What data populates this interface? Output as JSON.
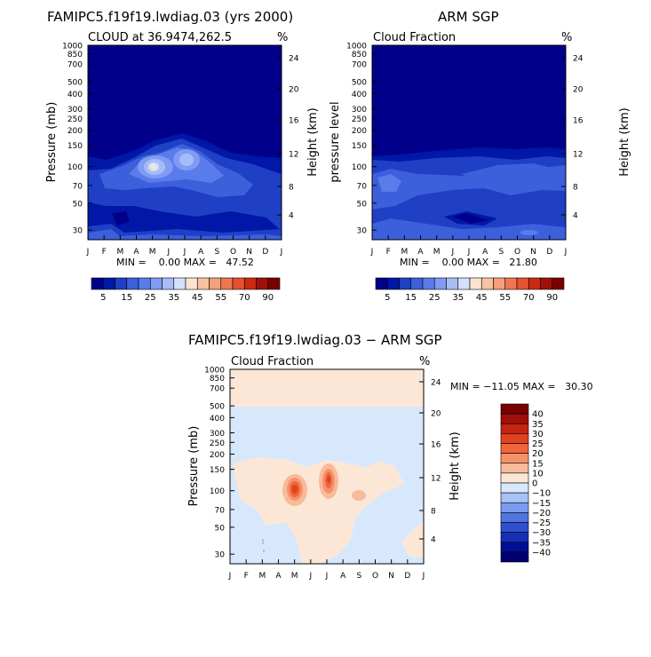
{
  "chart_data": [
    {
      "type": "heatmap",
      "id": "model",
      "title": "FAMIPC5.f19f19.lwdiag.03 (yrs 2000)",
      "subtitle_left": "CLOUD at 36.9474,262.5",
      "subtitle_right": "%",
      "ylabel": "Pressure (mb)",
      "ylabel_right": "Height (km)",
      "min_max_text": "MIN =    0.00 MAX =   47.52",
      "ytick_labels": [
        "30",
        "50",
        "70",
        "100",
        "150",
        "200",
        "250",
        "300",
        "400",
        "500",
        "700",
        "850",
        "1000"
      ],
      "right_tick_labels": [
        "24",
        "20",
        "16",
        "12",
        "8",
        "4"
      ],
      "month_labels": [
        "J",
        "F",
        "M",
        "A",
        "M",
        "J",
        "J",
        "A",
        "S",
        "O",
        "N",
        "D",
        "J"
      ],
      "colorbar_labels": [
        "5",
        "15",
        "25",
        "35",
        "45",
        "55",
        "70",
        "90"
      ],
      "levels": [
        5,
        10,
        15,
        20,
        25,
        30,
        35,
        40,
        45,
        50,
        55,
        60,
        70,
        80,
        90
      ]
    },
    {
      "type": "heatmap",
      "id": "obs",
      "title": "ARM SGP",
      "subtitle_left": "Cloud Fraction",
      "subtitle_right": "%",
      "ylabel": "pressure level",
      "ylabel_right": "Height (km)",
      "min_max_text": "MIN =    0.00 MAX =   21.80",
      "ytick_labels": [
        "30",
        "50",
        "70",
        "100",
        "150",
        "200",
        "250",
        "300",
        "400",
        "500",
        "700",
        "850",
        "1000"
      ],
      "right_tick_labels": [
        "24",
        "20",
        "16",
        "12",
        "8",
        "4"
      ],
      "month_labels": [
        "J",
        "F",
        "M",
        "A",
        "M",
        "J",
        "J",
        "A",
        "S",
        "O",
        "N",
        "D",
        "J"
      ],
      "colorbar_labels": [
        "5",
        "15",
        "25",
        "35",
        "45",
        "55",
        "70",
        "90"
      ],
      "levels": [
        5,
        10,
        15,
        20,
        25,
        30,
        35,
        40,
        45,
        50,
        55,
        60,
        70,
        80,
        90
      ]
    },
    {
      "type": "heatmap",
      "id": "diff",
      "title": "FAMIPC5.f19f19.lwdiag.03 − ARM SGP",
      "subtitle_left": "Cloud Fraction",
      "subtitle_right": "%",
      "ylabel": "Pressure (mb)",
      "ylabel_right": "Height (km)",
      "min_max_text": "MIN = −11.05 MAX =   30.30",
      "ytick_labels": [
        "30",
        "50",
        "70",
        "100",
        "150",
        "200",
        "250",
        "300",
        "400",
        "500",
        "700",
        "850",
        "1000"
      ],
      "right_tick_labels": [
        "24",
        "20",
        "16",
        "12",
        "8",
        "4"
      ],
      "month_labels": [
        "J",
        "F",
        "M",
        "A",
        "M",
        "J",
        "J",
        "A",
        "S",
        "O",
        "N",
        "D",
        "J"
      ],
      "colorbar_labels": [
        "40",
        "35",
        "30",
        "25",
        "20",
        "15",
        "10",
        "0",
        "−10",
        "−15",
        "−20",
        "−25",
        "−30",
        "−35",
        "−40"
      ],
      "levels": [
        -40,
        -35,
        -30,
        -25,
        -20,
        -15,
        -10,
        0,
        10,
        15,
        20,
        25,
        30,
        35,
        40
      ]
    }
  ],
  "colors": {
    "seq": [
      "#00008a",
      "#0017a8",
      "#1f3fc4",
      "#3c5fdc",
      "#5a7cea",
      "#7f9bf2",
      "#a7bbf7",
      "#d4e0fb",
      "#fbe3d2",
      "#f8c2a2",
      "#f4a07a",
      "#ef7650",
      "#e6512e",
      "#cc2a10",
      "#a0100a",
      "#7a0000"
    ],
    "div": [
      "#7a0000",
      "#a00f08",
      "#c52410",
      "#e0411e",
      "#f0653a",
      "#f5926b",
      "#f8bb9a",
      "#fce7d7",
      "#d8e8fc",
      "#a9c2f6",
      "#7a9bef",
      "#5274e3",
      "#2f4fd0",
      "#1530b4",
      "#010f96",
      "#000070"
    ]
  }
}
